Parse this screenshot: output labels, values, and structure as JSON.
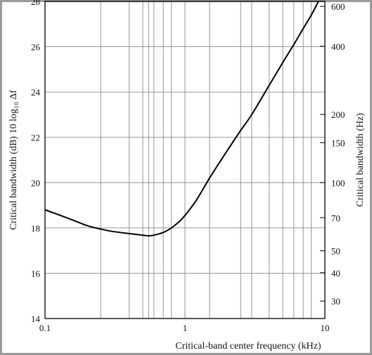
{
  "chart_data": {
    "type": "line",
    "title": "",
    "xlabel": "Critical-band center frequency (kHz)",
    "ylabel": "Critical bandwidth (dB) 10 log₁₀ Δf",
    "y2label": "Critical bandwidth (Hz)",
    "x_scale": "log",
    "xlim": [
      0.1,
      10
    ],
    "ylim": [
      14,
      28
    ],
    "grid": true,
    "x_ticks": [
      {
        "value": 0.1,
        "label": "0.1"
      },
      {
        "value": 1,
        "label": "1"
      },
      {
        "value": 10,
        "label": "10"
      }
    ],
    "x_minor": [
      0.25,
      0.4,
      0.5,
      0.55,
      0.6,
      0.7,
      0.8,
      1.5,
      2.5,
      3,
      4,
      5,
      6,
      7,
      8
    ],
    "y_ticks": [
      {
        "value": 14,
        "label": "14"
      },
      {
        "value": 16,
        "label": "16"
      },
      {
        "value": 18,
        "label": "18"
      },
      {
        "value": 20,
        "label": "20"
      },
      {
        "value": 22,
        "label": "22"
      },
      {
        "value": 24,
        "label": "24"
      },
      {
        "value": 26,
        "label": "26"
      },
      {
        "value": 28,
        "label": "28"
      }
    ],
    "y2_ticks": [
      {
        "value": 30,
        "label": "30"
      },
      {
        "value": 40,
        "label": "40"
      },
      {
        "value": 50,
        "label": "50"
      },
      {
        "value": 70,
        "label": "70"
      },
      {
        "value": 100,
        "label": "100"
      },
      {
        "value": 150,
        "label": "150"
      },
      {
        "value": 200,
        "label": "200"
      },
      {
        "value": 400,
        "label": "400"
      },
      {
        "value": 600,
        "label": "600"
      }
    ],
    "series": [
      {
        "color": "#000000",
        "x": [
          0.1,
          0.15,
          0.2,
          0.25,
          0.3,
          0.4,
          0.5,
          0.55,
          0.6,
          0.7,
          0.8,
          0.9,
          1.0,
          1.2,
          1.5,
          2.0,
          2.5,
          3.0,
          4.0,
          5.0,
          6.0,
          7.0,
          8.0,
          9.0
        ],
        "values": [
          18.8,
          18.4,
          18.1,
          17.95,
          17.85,
          17.75,
          17.68,
          17.65,
          17.68,
          17.8,
          18.0,
          18.25,
          18.55,
          19.2,
          20.2,
          21.4,
          22.3,
          23.0,
          24.3,
          25.3,
          26.1,
          26.8,
          27.4,
          28.0
        ]
      }
    ]
  }
}
